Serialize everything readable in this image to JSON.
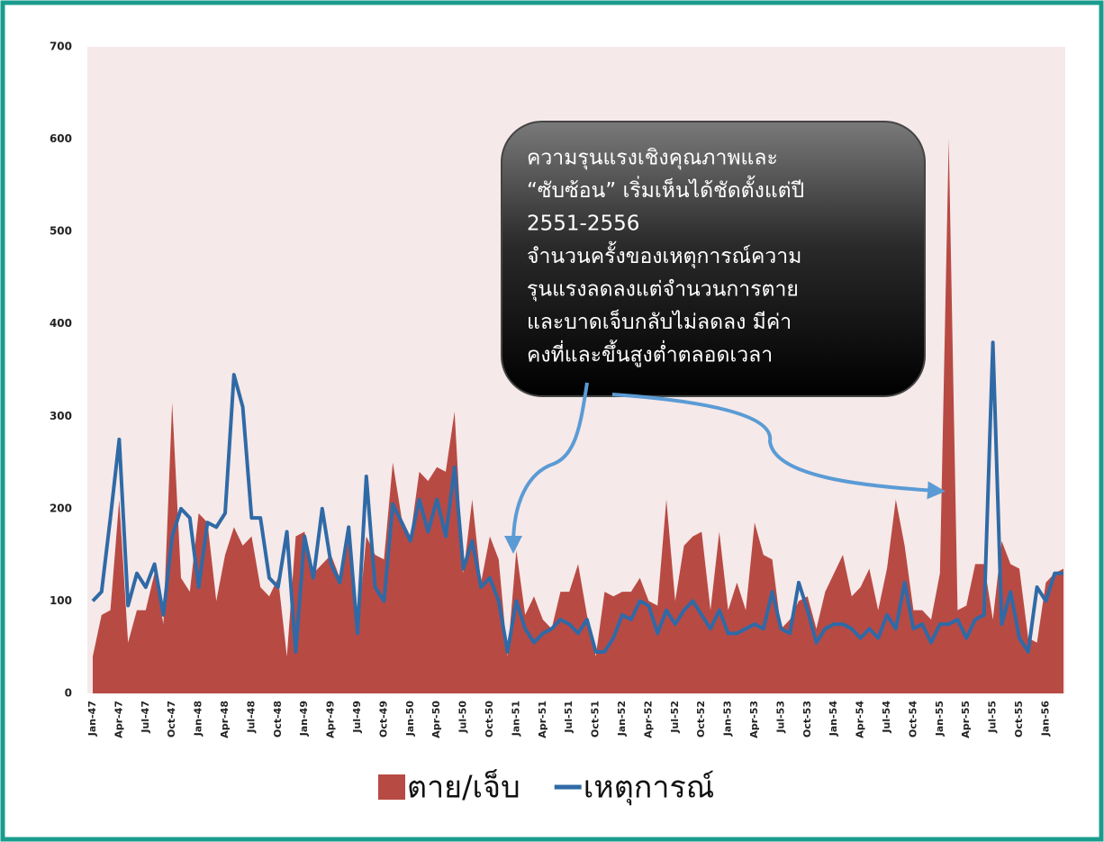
{
  "chart_data": {
    "type": "area-line",
    "categories": [
      "Jan-47",
      null,
      null,
      "Apr-47",
      null,
      null,
      "Jul-47",
      null,
      null,
      "Oct-47",
      null,
      null,
      "Jan-48",
      null,
      null,
      "Apr-48",
      null,
      null,
      "Jul-48",
      null,
      null,
      "Oct-48",
      null,
      null,
      "Jan-49",
      null,
      null,
      "Apr-49",
      null,
      null,
      "Jul-49",
      null,
      null,
      "Oct-49",
      null,
      null,
      "Jan-50",
      null,
      null,
      "Apr-50",
      null,
      null,
      "Jul-50",
      null,
      null,
      "Oct-50",
      null,
      null,
      "Jan-51",
      null,
      null,
      "Apr-51",
      null,
      null,
      "Jul-51",
      null,
      null,
      "Oct-51",
      null,
      null,
      "Jan-52",
      null,
      null,
      "Apr-52",
      null,
      null,
      "Jul-52",
      null,
      null,
      "Oct-52",
      null,
      null,
      "Jan-53",
      null,
      null,
      "Apr-53",
      null,
      null,
      "Jul-53",
      null,
      null,
      "Oct-53",
      null,
      null,
      "Jan-54",
      null,
      null,
      "Apr-54",
      null,
      null,
      "Jul-54",
      null,
      null,
      "Oct-54",
      null,
      null,
      "Jan-55",
      null,
      null,
      "Apr-55",
      null,
      null,
      "Jul-55",
      null,
      null,
      "Oct-55",
      null,
      null,
      "Jan-56",
      null,
      null
    ],
    "series": [
      {
        "name": "ตาย/เจ็บ",
        "kind": "area",
        "color": "#b84a44",
        "values": [
          40,
          85,
          90,
          210,
          55,
          90,
          90,
          130,
          75,
          315,
          125,
          110,
          195,
          185,
          100,
          150,
          180,
          160,
          170,
          115,
          105,
          125,
          40,
          170,
          175,
          130,
          140,
          150,
          125,
          180,
          65,
          170,
          150,
          145,
          250,
          190,
          170,
          240,
          230,
          245,
          240,
          305,
          130,
          210,
          120,
          170,
          145,
          40,
          155,
          85,
          105,
          80,
          70,
          110,
          110,
          140,
          85,
          40,
          110,
          105,
          110,
          110,
          125,
          100,
          95,
          210,
          100,
          160,
          170,
          175,
          90,
          175,
          90,
          120,
          90,
          185,
          150,
          145,
          70,
          80,
          100,
          105,
          70,
          110,
          130,
          150,
          105,
          115,
          135,
          90,
          135,
          210,
          160,
          90,
          90,
          80,
          130,
          600,
          90,
          95,
          140,
          140,
          80,
          165,
          140,
          135,
          60,
          55,
          120,
          130,
          135
        ]
      },
      {
        "name": "เหตุการณ์",
        "kind": "line",
        "color": "#2f6aa6",
        "values": [
          100,
          110,
          190,
          275,
          95,
          130,
          115,
          140,
          85,
          170,
          200,
          190,
          115,
          185,
          180,
          195,
          345,
          310,
          190,
          190,
          125,
          115,
          175,
          45,
          170,
          125,
          200,
          140,
          120,
          180,
          65,
          235,
          115,
          100,
          205,
          185,
          165,
          210,
          175,
          210,
          170,
          245,
          135,
          165,
          115,
          125,
          100,
          45,
          100,
          70,
          55,
          65,
          70,
          80,
          75,
          65,
          80,
          45,
          45,
          60,
          85,
          80,
          100,
          95,
          65,
          90,
          75,
          90,
          100,
          85,
          70,
          90,
          65,
          65,
          70,
          75,
          70,
          110,
          70,
          65,
          120,
          90,
          55,
          70,
          75,
          75,
          70,
          60,
          70,
          60,
          85,
          70,
          120,
          70,
          75,
          55,
          75,
          75,
          80,
          60,
          80,
          85,
          380,
          75,
          110,
          60,
          45,
          115,
          100,
          130,
          130
        ]
      }
    ],
    "ylim": [
      0,
      700
    ],
    "yticks": [
      0,
      100,
      200,
      300,
      400,
      500,
      600,
      700
    ],
    "grid": true,
    "legend": "bottom",
    "annotation": [
      "ความรุนแรงเชิงคุณภาพและ",
      "“ซับซ้อน” เริ่มเห็นได้ชัดตั้งแต่ปี",
      "2551-2556",
      "จำนวนครั้งของเหตุการณ์ความ",
      "รุนแรงลดลงแต่จำนวนการตาย",
      "และบาดเจ็บกลับไม่ลดลง มีค่า",
      "คงที่และขึ้นสูงต่ำตลอดเวลา"
    ]
  }
}
